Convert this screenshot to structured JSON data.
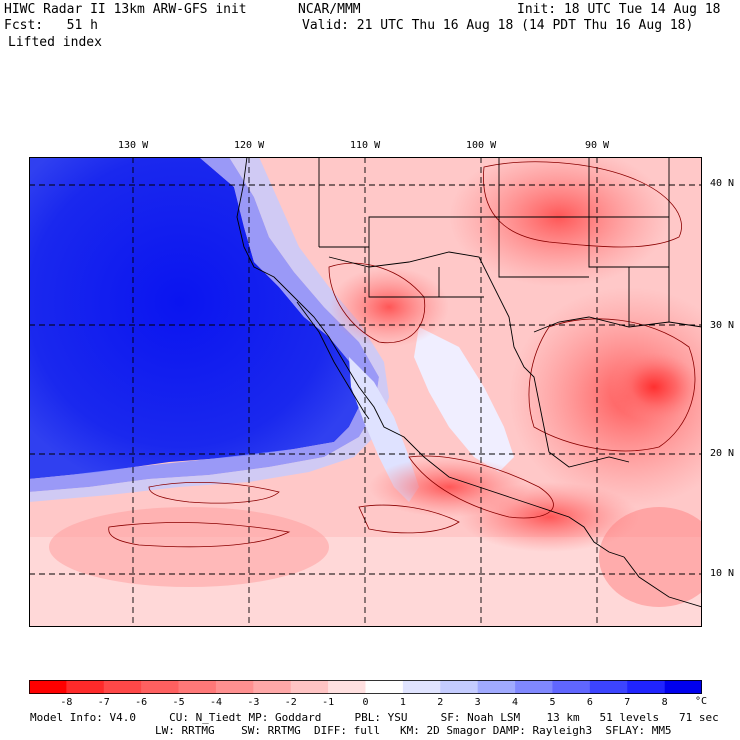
{
  "header": {
    "model_title": "HIWC Radar II 13km ARW-GFS init",
    "org": "NCAR/MMM",
    "init_time": "Init: 18 UTC Tue 14 Aug 18",
    "forecast_hour": "Fcst:   51 h",
    "valid_time": "Valid: 21 UTC Thu 16 Aug 18 (14 PDT Thu 16 Aug 18)",
    "field_name": "Lifted index"
  },
  "map": {
    "lon_labels": [
      "130 W",
      "120 W",
      "110 W",
      "100 W",
      "90 W"
    ],
    "lat_labels": [
      "40 N",
      "30 N",
      "20 N",
      "10 N"
    ]
  },
  "colorbar": {
    "tick_labels": [
      "-8",
      "-7",
      "-6",
      "-5",
      "-4",
      "-3",
      "-2",
      "-1",
      "0",
      "1",
      "2",
      "3",
      "4",
      "5",
      "6",
      "7",
      "8"
    ],
    "unit": "°C",
    "colors": [
      "#ff0000",
      "#ff2a2a",
      "#ff4848",
      "#ff6060",
      "#ff7878",
      "#ff9090",
      "#ffa8a8",
      "#ffc4c4",
      "#ffe0e0",
      "#ffffff",
      "#e0e4ff",
      "#c4ccff",
      "#a0aaff",
      "#8088ff",
      "#6066ff",
      "#3c44ff",
      "#2024ff",
      "#0000ee"
    ]
  },
  "footer": {
    "line1": "Model Info: V4.0     CU: N_Tiedt MP: Goddard     PBL: YSU     SF: Noah LSM    13 km   51 levels   71 sec",
    "line2": "LW: RRTMG    SW: RRTMG  DIFF: full   KM: 2D Smagor DAMP: Rayleigh3  SFLAY: MM5"
  }
}
